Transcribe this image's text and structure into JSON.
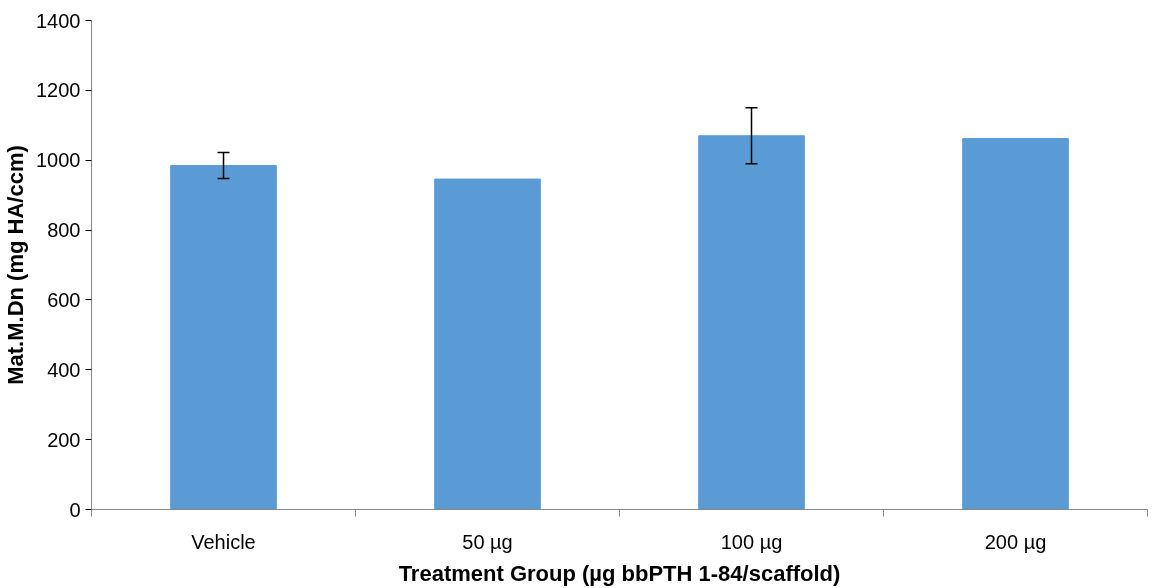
{
  "chart_data": {
    "type": "bar",
    "xlabel": "Treatment Group (µg bbPTH 1-84/scaffold)",
    "ylabel": "Mat.M.Dn (mg HA/ccm)",
    "categories": [
      "Vehicle",
      "50 µg",
      "100 µg",
      "200 µg"
    ],
    "values": [
      985,
      946,
      1070,
      1062
    ],
    "errors": [
      37,
      null,
      80,
      null
    ],
    "color": "#5b9bd5",
    "ylim": [
      0,
      1400
    ],
    "yticks": [
      0,
      200,
      400,
      600,
      800,
      1000,
      1200,
      1400
    ],
    "grid": false
  }
}
